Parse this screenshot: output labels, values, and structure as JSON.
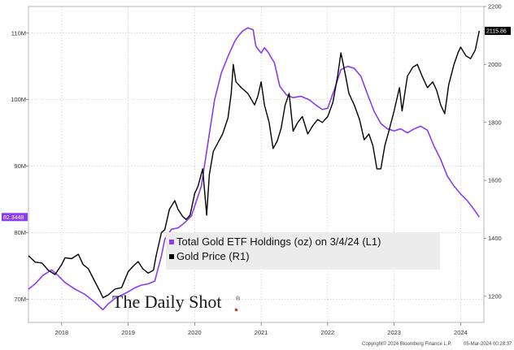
{
  "chart_data": {
    "type": "line",
    "title": "",
    "x_range": [
      2017.5,
      2024.35
    ],
    "x_tick_labels": [
      "2018",
      "2019",
      "2020",
      "2021",
      "2022",
      "2023",
      "2024"
    ],
    "x_tick_values": [
      2018.0,
      2019.0,
      2020.0,
      2021.0,
      2022.0,
      2023.0,
      2024.0
    ],
    "y_left": {
      "label": "Total Gold ETF Holdings (oz)",
      "range": [
        66.5,
        114
      ],
      "ticks": [
        70,
        80,
        90,
        100,
        110
      ],
      "tick_labels": [
        "70M",
        "80M",
        "90M",
        "100M",
        "110M"
      ]
    },
    "y_right": {
      "label": "Gold Price",
      "range": [
        1110,
        2200
      ],
      "ticks": [
        1200,
        1400,
        1600,
        1800,
        2000,
        2200
      ],
      "tick_labels": [
        "1200",
        "1400",
        "1600",
        "1800",
        "2000",
        "2200"
      ]
    },
    "series": [
      {
        "name": "Total Gold ETF Holdings (oz) on 3/4/24 (L1)",
        "axis": "left",
        "color": "#8a3cf0",
        "last_value_label": "82.3448",
        "points": [
          [
            2017.5,
            71.5
          ],
          [
            2017.6,
            72.3
          ],
          [
            2017.72,
            73.6
          ],
          [
            2017.85,
            74.4
          ],
          [
            2017.95,
            73.5
          ],
          [
            2018.05,
            72.5
          ],
          [
            2018.2,
            71.5
          ],
          [
            2018.35,
            70.7
          ],
          [
            2018.5,
            69.5
          ],
          [
            2018.62,
            68.4
          ],
          [
            2018.7,
            69.3
          ],
          [
            2018.8,
            70.1
          ],
          [
            2018.9,
            70.6
          ],
          [
            2019.0,
            71.1
          ],
          [
            2019.1,
            71.7
          ],
          [
            2019.2,
            72.1
          ],
          [
            2019.3,
            72.3
          ],
          [
            2019.4,
            72.7
          ],
          [
            2019.5,
            76.5
          ],
          [
            2019.55,
            79.0
          ],
          [
            2019.65,
            80.5
          ],
          [
            2019.75,
            80.7
          ],
          [
            2019.85,
            81.5
          ],
          [
            2019.95,
            82.5
          ],
          [
            2020.0,
            84.0
          ],
          [
            2020.1,
            87.0
          ],
          [
            2020.2,
            93.5
          ],
          [
            2020.3,
            100.0
          ],
          [
            2020.4,
            104.0
          ],
          [
            2020.5,
            106.5
          ],
          [
            2020.6,
            108.7
          ],
          [
            2020.65,
            109.5
          ],
          [
            2020.72,
            110.3
          ],
          [
            2020.8,
            110.8
          ],
          [
            2020.88,
            110.5
          ],
          [
            2020.92,
            108.0
          ],
          [
            2021.0,
            107.0
          ],
          [
            2021.05,
            107.8
          ],
          [
            2021.1,
            107.2
          ],
          [
            2021.2,
            105.5
          ],
          [
            2021.28,
            102.0
          ],
          [
            2021.38,
            100.7
          ],
          [
            2021.48,
            100.3
          ],
          [
            2021.6,
            100.5
          ],
          [
            2021.72,
            100.0
          ],
          [
            2021.82,
            99.2
          ],
          [
            2021.92,
            98.5
          ],
          [
            2022.0,
            98.7
          ],
          [
            2022.1,
            101.5
          ],
          [
            2022.2,
            104.5
          ],
          [
            2022.3,
            105.0
          ],
          [
            2022.4,
            104.7
          ],
          [
            2022.5,
            103.5
          ],
          [
            2022.6,
            100.8
          ],
          [
            2022.7,
            98.2
          ],
          [
            2022.8,
            96.4
          ],
          [
            2022.9,
            95.6
          ],
          [
            2023.0,
            95.3
          ],
          [
            2023.1,
            95.6
          ],
          [
            2023.2,
            95.0
          ],
          [
            2023.3,
            95.6
          ],
          [
            2023.4,
            96.0
          ],
          [
            2023.5,
            95.4
          ],
          [
            2023.6,
            93.0
          ],
          [
            2023.7,
            91.0
          ],
          [
            2023.8,
            88.5
          ],
          [
            2023.9,
            87.0
          ],
          [
            2024.0,
            85.8
          ],
          [
            2024.1,
            84.8
          ],
          [
            2024.2,
            83.5
          ],
          [
            2024.28,
            82.34
          ]
        ]
      },
      {
        "name": "Gold Price (R1)",
        "axis": "right",
        "color": "#000000",
        "last_value_label": "2115.86",
        "points": [
          [
            2017.5,
            1340
          ],
          [
            2017.6,
            1318
          ],
          [
            2017.7,
            1315
          ],
          [
            2017.8,
            1290
          ],
          [
            2017.9,
            1275
          ],
          [
            2018.0,
            1310
          ],
          [
            2018.05,
            1333
          ],
          [
            2018.15,
            1330
          ],
          [
            2018.25,
            1345
          ],
          [
            2018.32,
            1310
          ],
          [
            2018.4,
            1295
          ],
          [
            2018.5,
            1250
          ],
          [
            2018.58,
            1215
          ],
          [
            2018.62,
            1195
          ],
          [
            2018.7,
            1205
          ],
          [
            2018.8,
            1225
          ],
          [
            2018.9,
            1230
          ],
          [
            2019.0,
            1285
          ],
          [
            2019.08,
            1305
          ],
          [
            2019.15,
            1320
          ],
          [
            2019.22,
            1295
          ],
          [
            2019.3,
            1280
          ],
          [
            2019.38,
            1290
          ],
          [
            2019.42,
            1340
          ],
          [
            2019.5,
            1420
          ],
          [
            2019.55,
            1430
          ],
          [
            2019.62,
            1500
          ],
          [
            2019.7,
            1530
          ],
          [
            2019.75,
            1500
          ],
          [
            2019.82,
            1475
          ],
          [
            2019.87,
            1465
          ],
          [
            2019.93,
            1480
          ],
          [
            2020.0,
            1555
          ],
          [
            2020.05,
            1580
          ],
          [
            2020.12,
            1640
          ],
          [
            2020.18,
            1480
          ],
          [
            2020.22,
            1620
          ],
          [
            2020.28,
            1700
          ],
          [
            2020.35,
            1730
          ],
          [
            2020.42,
            1760
          ],
          [
            2020.5,
            1815
          ],
          [
            2020.55,
            1900
          ],
          [
            2020.58,
            2000
          ],
          [
            2020.62,
            1940
          ],
          [
            2020.7,
            1920
          ],
          [
            2020.8,
            1900
          ],
          [
            2020.9,
            1860
          ],
          [
            2020.95,
            1890
          ],
          [
            2021.0,
            1940
          ],
          [
            2021.05,
            1860
          ],
          [
            2021.12,
            1800
          ],
          [
            2021.18,
            1710
          ],
          [
            2021.24,
            1735
          ],
          [
            2021.3,
            1780
          ],
          [
            2021.36,
            1860
          ],
          [
            2021.42,
            1900
          ],
          [
            2021.48,
            1770
          ],
          [
            2021.55,
            1800
          ],
          [
            2021.62,
            1820
          ],
          [
            2021.7,
            1760
          ],
          [
            2021.78,
            1790
          ],
          [
            2021.85,
            1810
          ],
          [
            2021.92,
            1800
          ],
          [
            2022.0,
            1820
          ],
          [
            2022.08,
            1870
          ],
          [
            2022.15,
            1960
          ],
          [
            2022.2,
            2040
          ],
          [
            2022.27,
            1960
          ],
          [
            2022.32,
            1900
          ],
          [
            2022.4,
            1860
          ],
          [
            2022.48,
            1810
          ],
          [
            2022.55,
            1740
          ],
          [
            2022.62,
            1760
          ],
          [
            2022.68,
            1720
          ],
          [
            2022.74,
            1640
          ],
          [
            2022.8,
            1640
          ],
          [
            2022.86,
            1720
          ],
          [
            2022.92,
            1770
          ],
          [
            2023.0,
            1840
          ],
          [
            2023.08,
            1920
          ],
          [
            2023.12,
            1840
          ],
          [
            2023.2,
            1960
          ],
          [
            2023.28,
            1990
          ],
          [
            2023.35,
            2000
          ],
          [
            2023.42,
            1960
          ],
          [
            2023.5,
            1920
          ],
          [
            2023.58,
            1940
          ],
          [
            2023.64,
            1910
          ],
          [
            2023.7,
            1860
          ],
          [
            2023.76,
            1830
          ],
          [
            2023.82,
            1930
          ],
          [
            2023.9,
            2000
          ],
          [
            2023.96,
            2040
          ],
          [
            2024.0,
            2060
          ],
          [
            2024.08,
            2030
          ],
          [
            2024.15,
            2020
          ],
          [
            2024.22,
            2050
          ],
          [
            2024.28,
            2115.86
          ]
        ]
      }
    ],
    "legend": [
      {
        "label": "Total Gold ETF Holdings (oz) on 3/4/24 (L1)",
        "color": "#8a3cf0"
      },
      {
        "label": "Gold Price (R1)",
        "color": "#000000"
      }
    ]
  },
  "branding": {
    "logo_text": "The Daily Shot",
    "logo_mark": "®",
    "copyright": "Copyright© 2024 Bloomberg Finance L.P.",
    "timestamp": "05-Mar-2024 00:28:37"
  }
}
